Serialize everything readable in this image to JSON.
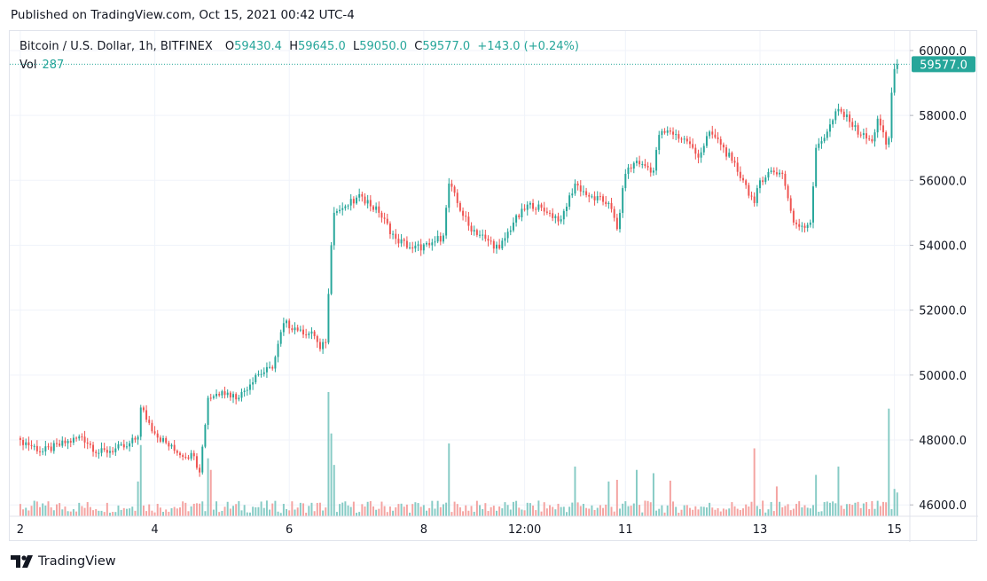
{
  "header": {
    "published": "Published on TradingView.com, Oct 15, 2021 00:42 UTC-4"
  },
  "legend": {
    "symbol": "Bitcoin / U.S. Dollar, 1h, BITFINEX",
    "o_label": "O",
    "o_value": "59430.4",
    "h_label": "H",
    "h_value": "59645.0",
    "l_label": "L",
    "l_value": "59050.0",
    "c_label": "C",
    "c_value": "59577.0",
    "change": "+143.0 (+0.24%)",
    "vol_label": "Vol",
    "vol_value": "287"
  },
  "footer": {
    "brand": "TradingView"
  },
  "colors": {
    "up": "#26a69a",
    "down": "#ef5350",
    "up_vol": "#86cbc5",
    "down_vol": "#f4a3a1",
    "grid": "#f0f3fa",
    "text": "#131722"
  },
  "chart_data": {
    "type": "candlestick",
    "title": "Bitcoin / U.S. Dollar, 1h, BITFINEX",
    "ylim": [
      45650,
      60600
    ],
    "y_ticks": [
      46000,
      48000,
      50000,
      52000,
      54000,
      56000,
      58000,
      60000
    ],
    "y_tick_labels": [
      "46000.0",
      "48000.0",
      "50000.0",
      "52000.0",
      "54000.0",
      "56000.0",
      "58000.0",
      "60000.0"
    ],
    "x_ticks": [
      {
        "label": "2",
        "hour": 0
      },
      {
        "label": "4",
        "hour": 48
      },
      {
        "label": "6",
        "hour": 96
      },
      {
        "label": "8",
        "hour": 144
      },
      {
        "label": "12:00",
        "hour": 180
      },
      {
        "label": "11",
        "hour": 216
      },
      {
        "label": "13",
        "hour": 264
      },
      {
        "label": "15",
        "hour": 312
      }
    ],
    "last_price": 59577.0,
    "last_price_label": "59577.0",
    "close_anchors": [
      [
        0,
        48000
      ],
      [
        8,
        47650
      ],
      [
        16,
        47900
      ],
      [
        22,
        48100
      ],
      [
        28,
        47600
      ],
      [
        38,
        47800
      ],
      [
        42,
        48100
      ],
      [
        43,
        49000
      ],
      [
        48,
        48200
      ],
      [
        56,
        47600
      ],
      [
        62,
        47500
      ],
      [
        64,
        47000
      ],
      [
        67,
        49300
      ],
      [
        72,
        49500
      ],
      [
        78,
        49300
      ],
      [
        84,
        50000
      ],
      [
        90,
        50200
      ],
      [
        94,
        51600
      ],
      [
        100,
        51400
      ],
      [
        105,
        51200
      ],
      [
        107,
        50800
      ],
      [
        109,
        51000
      ],
      [
        110,
        52500
      ],
      [
        111,
        54000
      ],
      [
        112,
        55000
      ],
      [
        116,
        55200
      ],
      [
        122,
        55500
      ],
      [
        128,
        55000
      ],
      [
        134,
        54200
      ],
      [
        140,
        53900
      ],
      [
        146,
        54000
      ],
      [
        151,
        54300
      ],
      [
        153,
        55900
      ],
      [
        156,
        55300
      ],
      [
        160,
        54600
      ],
      [
        166,
        54200
      ],
      [
        171,
        53900
      ],
      [
        176,
        54700
      ],
      [
        182,
        55300
      ],
      [
        188,
        55000
      ],
      [
        193,
        54800
      ],
      [
        198,
        55900
      ],
      [
        203,
        55500
      ],
      [
        210,
        55300
      ],
      [
        213,
        54500
      ],
      [
        216,
        56200
      ],
      [
        220,
        56600
      ],
      [
        222,
        56500
      ],
      [
        226,
        56300
      ],
      [
        228,
        57400
      ],
      [
        232,
        57500
      ],
      [
        238,
        57200
      ],
      [
        242,
        56700
      ],
      [
        246,
        57500
      ],
      [
        250,
        57100
      ],
      [
        254,
        56600
      ],
      [
        258,
        56000
      ],
      [
        262,
        55300
      ],
      [
        264,
        56000
      ],
      [
        268,
        56300
      ],
      [
        272,
        56200
      ],
      [
        276,
        54700
      ],
      [
        279,
        54600
      ],
      [
        282,
        54700
      ],
      [
        284,
        57000
      ],
      [
        288,
        57500
      ],
      [
        292,
        58200
      ],
      [
        296,
        57800
      ],
      [
        300,
        57400
      ],
      [
        304,
        57200
      ],
      [
        306,
        57900
      ],
      [
        309,
        57100
      ],
      [
        310,
        57300
      ],
      [
        311,
        58700
      ],
      [
        312,
        59430
      ],
      [
        313,
        59577
      ]
    ],
    "volume_spikes": [
      [
        42,
        420
      ],
      [
        43,
        860
      ],
      [
        67,
        700
      ],
      [
        68,
        560
      ],
      [
        110,
        1500
      ],
      [
        111,
        1000
      ],
      [
        112,
        620
      ],
      [
        153,
        880
      ],
      [
        198,
        600
      ],
      [
        210,
        420
      ],
      [
        213,
        440
      ],
      [
        220,
        560
      ],
      [
        226,
        520
      ],
      [
        232,
        430
      ],
      [
        262,
        820
      ],
      [
        270,
        360
      ],
      [
        284,
        500
      ],
      [
        292,
        600
      ],
      [
        310,
        1300
      ],
      [
        312,
        330
      ],
      [
        313,
        287
      ]
    ]
  }
}
